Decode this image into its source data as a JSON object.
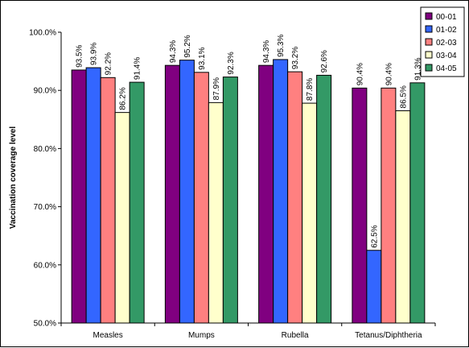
{
  "chart_data": {
    "type": "bar",
    "categories": [
      "Measles",
      "Mumps",
      "Rubella",
      "Tetanus/Diphtheria"
    ],
    "series": [
      {
        "name": "00-01",
        "color": "#800080",
        "values": [
          93.5,
          94.3,
          94.3,
          90.4
        ],
        "labels": [
          "93.5%",
          "94.3%",
          "94.3%",
          "90.4%"
        ]
      },
      {
        "name": "01-02",
        "color": "#3366ff",
        "values": [
          93.9,
          95.2,
          95.3,
          62.5
        ],
        "labels": [
          "93.9%",
          "95.2%",
          "95.3%",
          "62.5%"
        ]
      },
      {
        "name": "02-03",
        "color": "#ff8080",
        "values": [
          92.2,
          93.1,
          93.2,
          90.4
        ],
        "labels": [
          "92.2%",
          "93.1%",
          "93.2%",
          "90.4%"
        ]
      },
      {
        "name": "03-04",
        "color": "#ffffcc",
        "values": [
          86.2,
          87.9,
          87.8,
          86.5
        ],
        "labels": [
          "86.2%",
          "87.9%",
          "87.8%",
          "86.5%"
        ]
      },
      {
        "name": "04-05",
        "color": "#339966",
        "values": [
          91.4,
          92.3,
          92.6,
          91.3
        ],
        "labels": [
          "91.4%",
          "92.3%",
          "92.6%",
          "91.3%"
        ]
      }
    ],
    "ylabel": "Vaccination coverage level",
    "ylim": [
      50,
      100
    ],
    "yticks": [
      50,
      60,
      70,
      80,
      90,
      100
    ],
    "ytick_labels": [
      "50.0%",
      "60.0%",
      "70.0%",
      "80.0%",
      "90.0%",
      "100.0%"
    ],
    "legend_position": "top-right",
    "grid": false
  }
}
